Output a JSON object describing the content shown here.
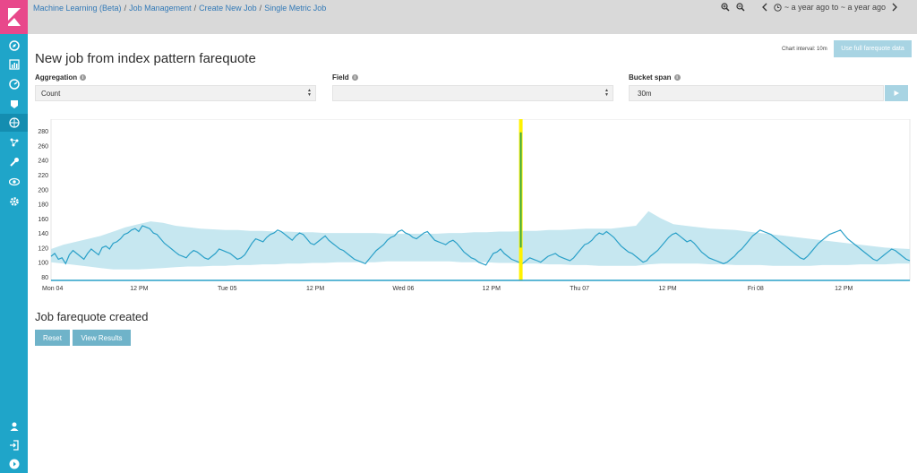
{
  "breadcrumb": [
    {
      "label": "Machine Learning (Beta)"
    },
    {
      "label": "Job Management"
    },
    {
      "label": "Create New Job"
    },
    {
      "label": "Single Metric Job"
    }
  ],
  "breadcrumb_separator": "/",
  "time_range": "~ a year ago to ~ a year ago",
  "sidebar": {
    "icons": [
      "discover-icon",
      "visualize-icon",
      "dashboard-icon",
      "timelion-icon",
      "machine-learning-icon",
      "graph-icon",
      "dev-tools-icon",
      "monitoring-icon",
      "management-icon"
    ],
    "bottom_icons": [
      "user-icon",
      "logout-icon",
      "collapse-icon"
    ]
  },
  "header": {
    "chart_interval": "Chart interval: 10m",
    "full_data_button": "Use full farequote data",
    "title": "New job from index pattern farequote"
  },
  "form": {
    "aggregation_label": "Aggregation",
    "aggregation_value": "Count",
    "field_label": "Field",
    "field_value": "",
    "bucket_span_label": "Bucket span",
    "bucket_span_value": "30m",
    "info_glyph": "i"
  },
  "result": {
    "title": "Job farequote created",
    "reset_button": "Reset",
    "view_results_button": "View Results"
  },
  "colors": {
    "sidebar": "#1fa5c9",
    "logo": "#e8488b",
    "line": "#2aa0c8",
    "band": "#c6e7f0",
    "marker": "#fff200",
    "spike": "#3aa84a"
  },
  "chart_data": {
    "type": "line",
    "y_ticks": [
      80,
      100,
      120,
      140,
      160,
      180,
      200,
      220,
      240,
      260,
      280
    ],
    "ylim": [
      75,
      290
    ],
    "x_ticks": [
      "Mon 04",
      "12 PM",
      "Tue 05",
      "12 PM",
      "Wed 06",
      "12 PM",
      "Thu 07",
      "12 PM",
      "Fri 08",
      "12 PM"
    ],
    "x_tick_hours": [
      0,
      12,
      24,
      36,
      48,
      60,
      72,
      84,
      96,
      108
    ],
    "x_range_hours": [
      0,
      117
    ],
    "marker_hour": 64,
    "spike_hour": 64,
    "spike_value": 278,
    "series": [
      {
        "values": [
          108,
          112,
          104,
          106,
          98,
          110,
          116,
          112,
          108,
          104,
          112,
          118,
          114,
          110,
          120,
          122,
          118,
          126,
          128,
          132,
          138,
          140,
          144,
          146,
          142,
          150,
          148,
          146,
          140,
          138,
          132,
          126,
          122,
          118,
          114,
          110,
          108,
          106,
          112,
          116,
          114,
          110,
          106,
          104,
          108,
          112,
          118,
          116,
          114,
          112,
          108,
          104,
          106,
          110,
          118,
          126,
          132,
          130,
          128,
          134,
          138,
          140,
          144,
          142,
          138,
          134,
          130,
          136,
          140,
          138,
          132,
          126,
          124,
          128,
          132,
          136,
          130,
          126,
          122,
          118,
          116,
          112,
          108,
          104,
          102,
          100,
          98,
          104,
          110,
          116,
          120,
          124,
          130,
          134,
          136,
          142,
          144,
          140,
          138,
          134,
          132,
          136,
          140,
          142,
          136,
          130,
          128,
          126,
          124,
          128,
          130,
          126,
          120,
          114,
          110,
          106,
          104,
          100,
          98,
          96,
          104,
          112,
          114,
          118,
          112,
          108,
          104,
          102,
          100,
          98,
          102,
          106,
          104,
          102,
          100,
          104,
          108,
          110,
          112,
          108,
          106,
          104,
          102,
          106,
          112,
          118,
          124,
          126,
          130,
          136,
          140,
          138,
          142,
          138,
          134,
          128,
          122,
          118,
          114,
          112,
          108,
          104,
          100,
          102,
          108,
          112,
          116,
          122,
          128,
          134,
          138,
          140,
          136,
          132,
          128,
          130,
          126,
          120,
          114,
          110,
          106,
          104,
          102,
          100,
          98,
          100,
          104,
          108,
          114,
          118,
          124,
          130,
          136,
          140,
          144,
          142,
          140,
          138,
          134,
          130,
          126,
          122,
          118,
          114,
          110,
          106,
          104,
          108,
          114,
          120,
          126,
          130,
          134,
          138,
          140,
          142,
          144,
          138,
          132,
          128,
          124,
          120,
          116,
          112,
          108,
          104,
          102,
          106,
          110,
          114,
          118,
          116,
          112,
          108,
          104,
          102
        ],
        "band_upper": [
          118,
          124,
          128,
          132,
          136,
          142,
          148,
          152,
          156,
          154,
          150,
          148,
          146,
          145,
          144,
          144,
          143,
          143,
          142,
          142,
          141,
          141,
          140,
          140,
          140,
          140,
          140,
          139,
          139,
          139,
          139,
          139,
          140,
          140,
          141,
          141,
          142,
          142,
          143,
          143,
          144,
          144,
          145,
          146,
          146,
          146,
          148,
          150,
          170,
          160,
          152,
          150,
          148,
          146,
          145,
          144,
          142,
          140,
          138,
          136,
          134,
          132,
          130,
          128,
          126,
          124,
          122,
          120,
          119,
          118
        ],
        "band_lower": [
          100,
          98,
          96,
          94,
          92,
          90,
          90,
          90,
          91,
          92,
          93,
          94,
          94,
          95,
          95,
          96,
          96,
          97,
          97,
          98,
          98,
          99,
          99,
          100,
          100,
          100,
          100,
          101,
          101,
          101,
          101,
          101,
          101,
          100,
          100,
          100,
          99,
          99,
          98,
          98,
          97,
          97,
          96,
          96,
          95,
          95,
          95,
          95,
          97,
          98,
          98,
          98,
          98,
          97,
          97,
          96,
          96,
          96,
          95,
          95,
          95,
          95,
          96,
          96,
          96,
          97,
          97,
          97,
          98,
          98
        ]
      }
    ]
  }
}
